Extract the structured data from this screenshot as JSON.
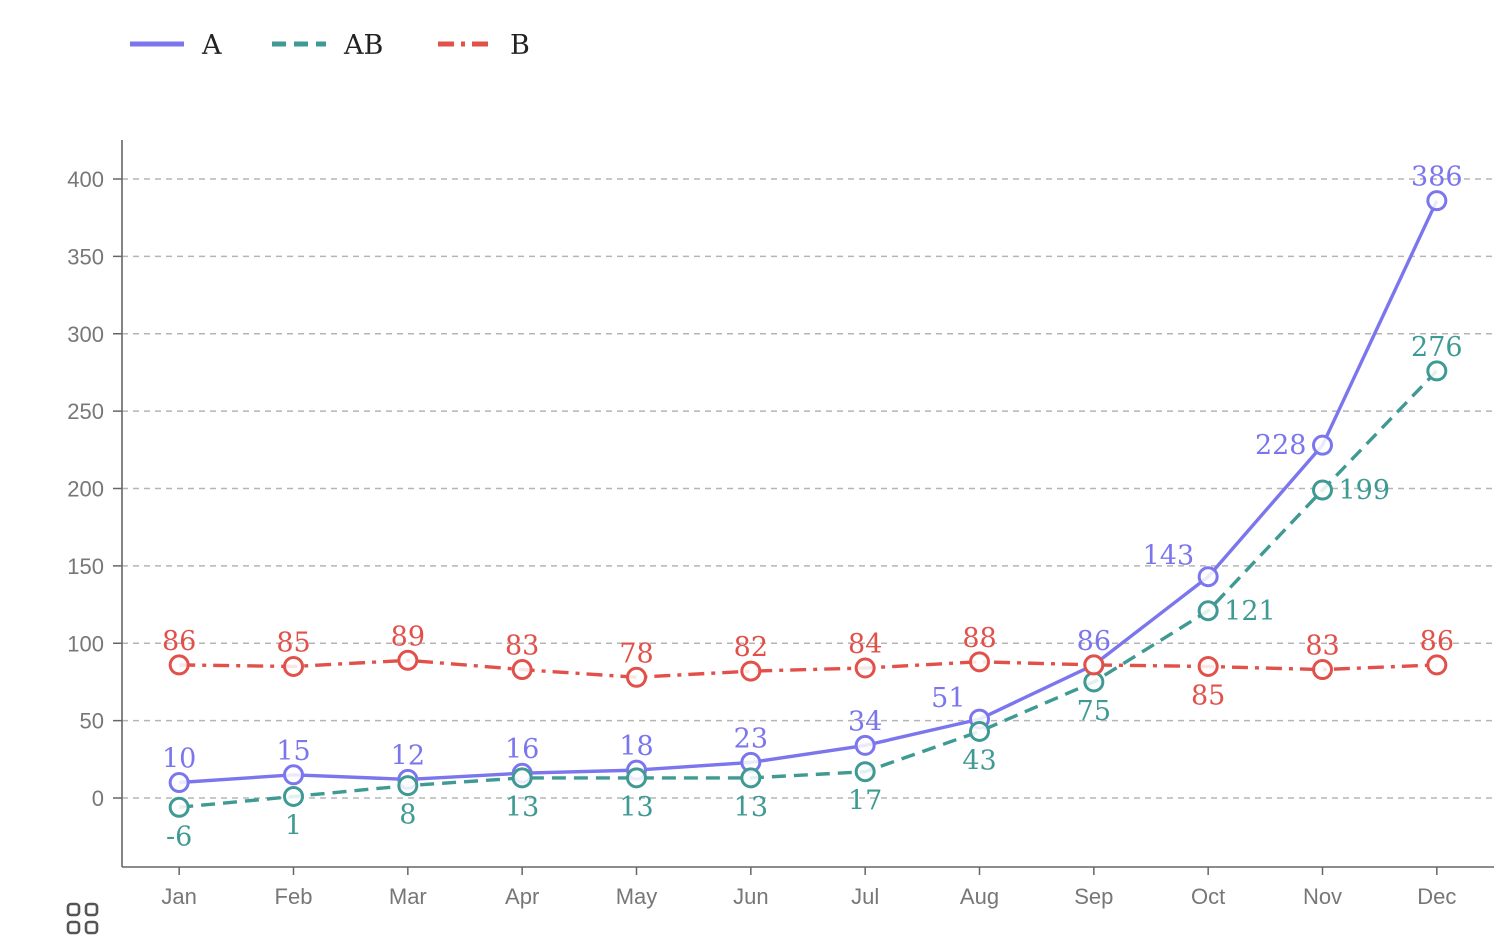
{
  "chart_data": {
    "type": "line",
    "categories": [
      "Jan",
      "Feb",
      "Mar",
      "Apr",
      "May",
      "Jun",
      "Jul",
      "Aug",
      "Sep",
      "Oct",
      "Nov",
      "Dec"
    ],
    "series": [
      {
        "name": "A",
        "color": "#7b76ee",
        "style": "solid",
        "values": [
          10,
          15,
          12,
          16,
          18,
          23,
          34,
          51,
          86,
          143,
          228,
          386
        ]
      },
      {
        "name": "AB",
        "color": "#3f9a93",
        "style": "dashed",
        "values": [
          -6,
          1,
          8,
          13,
          13,
          13,
          17,
          43,
          75,
          121,
          199,
          276
        ]
      },
      {
        "name": "B",
        "color": "#e2504a",
        "style": "dash-dot",
        "values": [
          86,
          85,
          89,
          83,
          78,
          82,
          84,
          88,
          86,
          85,
          83,
          86
        ]
      }
    ],
    "yticks": [
      0,
      50,
      100,
      150,
      200,
      250,
      300,
      350,
      400
    ],
    "ylim": [
      -45,
      425
    ],
    "grid": "horizontal dashed",
    "legend": "top-left",
    "data_labels": true
  },
  "toolbar": {
    "icon": "grid-icon"
  }
}
